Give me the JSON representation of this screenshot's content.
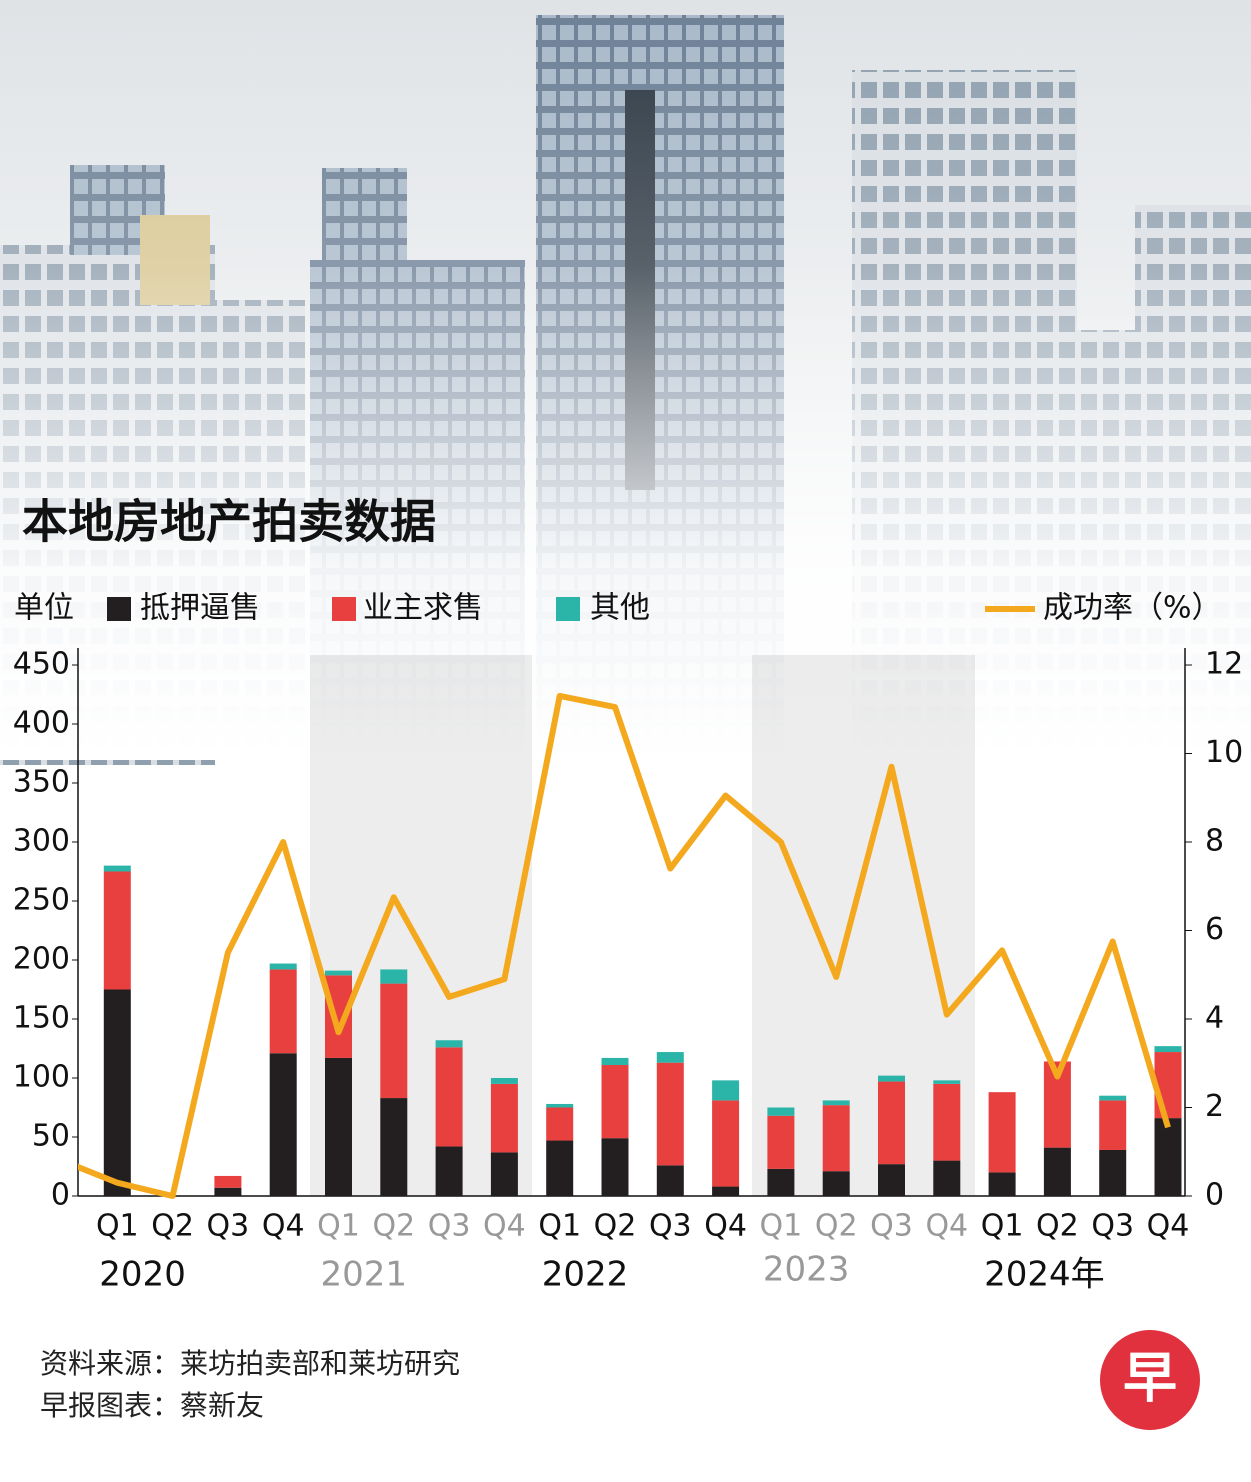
{
  "chart_data": {
    "type": "bar",
    "stacked": true,
    "title": "本地房地产拍卖数据",
    "y_label": "单位",
    "categories": [
      null,
      "Q1",
      "Q2",
      "Q3",
      "Q4",
      "Q1",
      "Q2",
      "Q3",
      "Q4",
      "Q1",
      "Q2",
      "Q3",
      "Q4",
      "Q1",
      "Q2",
      "Q3",
      "Q4",
      "Q1",
      "Q2",
      "Q3",
      "Q4"
    ],
    "groups": [
      "2020",
      "2021",
      "2022",
      "2023",
      "2024年"
    ],
    "series": [
      {
        "name": "抵押逼售",
        "color": "#231f20",
        "values": [
          null,
          175,
          0,
          7,
          121,
          117,
          83,
          42,
          37,
          47,
          49,
          26,
          8,
          23,
          21,
          27,
          30,
          20,
          41,
          39,
          66
        ]
      },
      {
        "name": "业主求售",
        "color": "#e8403f",
        "values": [
          null,
          100,
          0,
          10,
          71,
          70,
          97,
          84,
          58,
          28,
          62,
          87,
          73,
          45,
          56,
          70,
          65,
          68,
          73,
          42,
          56
        ]
      },
      {
        "name": "其他",
        "color": "#2bb5a8",
        "values": [
          null,
          5,
          0,
          0,
          5,
          4,
          12,
          6,
          5,
          3,
          6,
          9,
          17,
          7,
          4,
          5,
          3,
          0,
          0,
          4,
          5
        ]
      },
      {
        "name": "成功率（%）",
        "color": "#f4a81d",
        "type": "line",
        "axis": "y2",
        "values": [
          0.8,
          0.3,
          0,
          5.5,
          8.0,
          3.7,
          6.75,
          4.5,
          4.9,
          11.3,
          11.05,
          7.4,
          9.05,
          8.0,
          4.95,
          9.7,
          4.1,
          5.55,
          2.7,
          5.75,
          1.55
        ]
      }
    ],
    "ylim": [
      0,
      450
    ],
    "yticks": [
      0,
      50,
      100,
      150,
      200,
      250,
      300,
      350,
      400,
      450
    ],
    "y2lim": [
      0,
      12
    ],
    "y2ticks": [
      0,
      2,
      4,
      6,
      8,
      10,
      12
    ],
    "source": "资料来源：莱坊拍卖部和莱坊研究",
    "credit": "早报图表：蔡新友",
    "logo": "早"
  }
}
